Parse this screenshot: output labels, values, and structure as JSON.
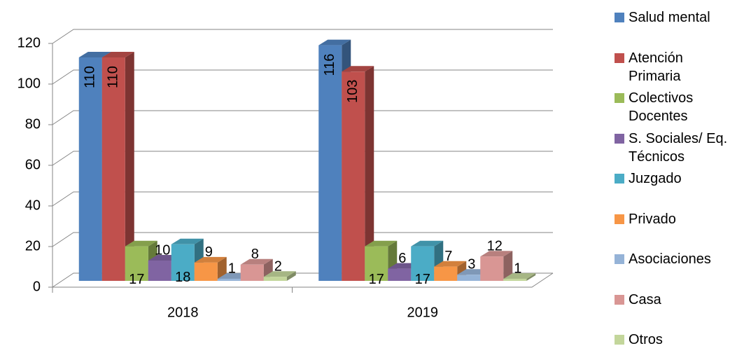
{
  "chart_data": {
    "type": "bar3d",
    "categories": [
      "2018",
      "2019"
    ],
    "series": [
      {
        "name": "Salud mental",
        "color": "#4f81bd",
        "values": [
          110,
          116
        ]
      },
      {
        "name": "Atención Primaria",
        "color": "#c0504d",
        "values": [
          110,
          103
        ]
      },
      {
        "name": "Colectivos Docentes",
        "color": "#9bbb59",
        "values": [
          17,
          17
        ]
      },
      {
        "name": "S. Sociales/ Eq. Técnicos",
        "color": "#8064a2",
        "values": [
          10,
          6
        ]
      },
      {
        "name": "Juzgado",
        "color": "#4bacc6",
        "values": [
          18,
          17
        ]
      },
      {
        "name": "Privado",
        "color": "#f79646",
        "values": [
          9,
          7
        ]
      },
      {
        "name": "Asociaciones",
        "color": "#95b3d7",
        "values": [
          1,
          3
        ]
      },
      {
        "name": "Casa",
        "color": "#d99694",
        "values": [
          8,
          12
        ]
      },
      {
        "name": "Otros",
        "color": "#c3d69b",
        "values": [
          2,
          1
        ]
      }
    ],
    "ylim": [
      0,
      120
    ],
    "yticks": [
      0,
      20,
      40,
      60,
      80,
      100,
      120
    ],
    "grid": true,
    "legend": "right"
  }
}
